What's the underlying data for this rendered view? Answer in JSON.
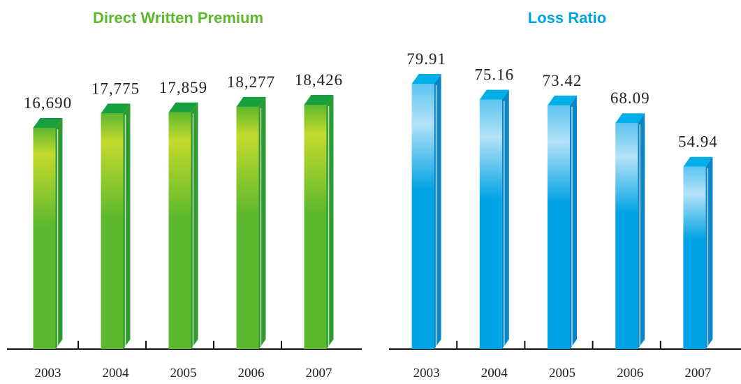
{
  "chart_data": [
    {
      "type": "bar3d",
      "title": "Direct Written Premium",
      "categories": [
        "2003",
        "2004",
        "2005",
        "2006",
        "2007"
      ],
      "values": [
        16690,
        17775,
        17859,
        18277,
        18426
      ],
      "value_labels": [
        "16,690",
        "17,775",
        "17,859",
        "18,277",
        "18,426"
      ],
      "color": "#5cb82e"
    },
    {
      "type": "bar3d",
      "title": "Loss Ratio",
      "categories": [
        "2003",
        "2004",
        "2005",
        "2006",
        "2007"
      ],
      "values": [
        79.91,
        75.16,
        73.42,
        68.09,
        54.94
      ],
      "color": "#00a3e4"
    }
  ]
}
